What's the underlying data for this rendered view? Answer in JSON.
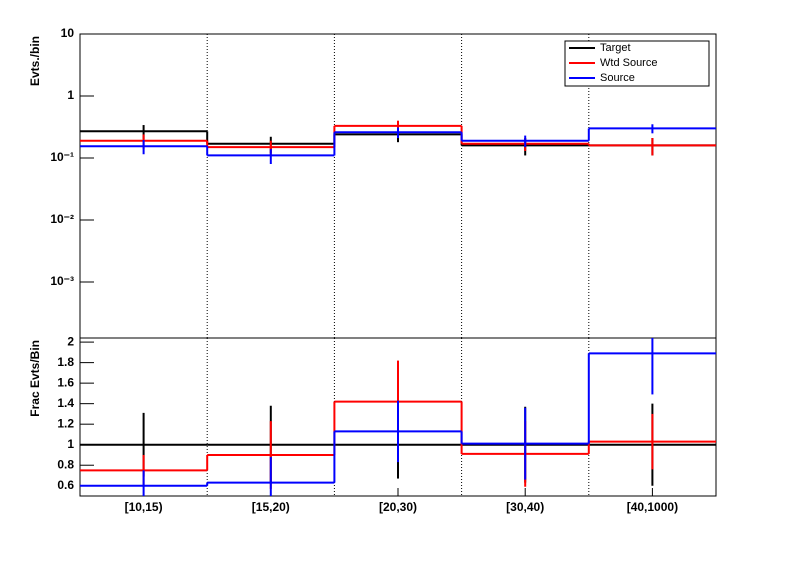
{
  "chart_data": [
    {
      "type": "step",
      "ylabel": "Evts./bin",
      "log_scale": true,
      "xgrid": true,
      "legend": "top-right",
      "ylim": [
        0.000125,
        10
      ],
      "yticks": [
        10,
        1,
        {
          "value": 0.1,
          "label": "10⁻¹"
        },
        {
          "value": 0.01,
          "label": "10⁻²"
        },
        {
          "value": 0.001,
          "label": "10⁻³"
        }
      ],
      "series": [
        {
          "name": "Target",
          "color": "#000000",
          "values": [
            0.27,
            0.17,
            0.24,
            0.16,
            0.16
          ],
          "errors": [
            0.07,
            0.05,
            0.06,
            0.05,
            0.05
          ]
        },
        {
          "name": "Wtd Source",
          "color": "#ff0000",
          "values": [
            0.19,
            0.15,
            0.33,
            0.17,
            0.16
          ],
          "errors": [
            0.05,
            0.04,
            0.07,
            0.04,
            0.05
          ]
        },
        {
          "name": "Source",
          "color": "#0000ff",
          "values": [
            0.155,
            0.11,
            0.26,
            0.19,
            0.3
          ],
          "errors": [
            0.04,
            0.03,
            0.05,
            0.04,
            0.05
          ]
        }
      ]
    },
    {
      "type": "step",
      "ylabel": "Frac Evts/Bin",
      "xgrid": true,
      "categories": [
        "[10,15)",
        "[15,20)",
        "[20,30)",
        "[30,40)",
        "[40,1000)"
      ],
      "ylim": [
        0.5,
        2.04
      ],
      "yticks": [
        0.6,
        0.8,
        1,
        1.2,
        1.4,
        1.6,
        1.8,
        2
      ],
      "series": [
        {
          "name": "Target",
          "color": "#000000",
          "values": [
            1,
            1,
            1,
            1,
            1
          ],
          "errors": [
            0.31,
            0.38,
            0.33,
            0.37,
            0.4
          ]
        },
        {
          "name": "Wtd Source",
          "color": "#ff0000",
          "values": [
            0.75,
            0.9,
            1.42,
            0.91,
            1.03
          ],
          "errors": [
            0.15,
            0.33,
            0.4,
            0.32,
            0.27
          ]
        },
        {
          "name": "Source",
          "color": "#0000ff",
          "values": [
            0.6,
            0.63,
            1.13,
            1.01,
            1.89
          ],
          "errors": [
            0.15,
            0.25,
            0.3,
            0.35,
            0.4
          ]
        }
      ]
    }
  ]
}
